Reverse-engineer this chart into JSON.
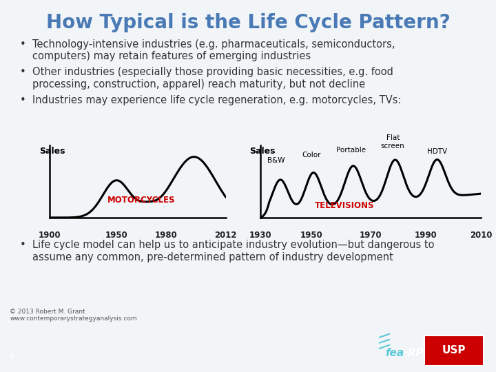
{
  "title": "How Typical is the Life Cycle Pattern?",
  "title_color": "#4a7ab5",
  "title_fontsize": 20,
  "background_color": "#f2f5f7",
  "footer_color": "#1a4040",
  "bullet_color": "#333333",
  "bullet_fontsize": 10.5,
  "bullets": [
    "Technology-intensive industries (e.g. pharmaceuticals, semiconductors,\ncomputers) may retain features of emerging industries",
    "Other industries (especially those providing basic necessities, e.g. food\nprocessing, construction, apparel) reach maturity, but not decline",
    "Industries may experience life cycle regeneration, e.g. motorcycles, TVs:"
  ],
  "bottom_bullet": "Life cycle model can help us to anticipate industry evolution—but dangerous to\nassume any common, pre-determined pattern of industry development",
  "motorcycles_label": "MOTORCYCLES",
  "televisions_label": "TELEVISIONS",
  "moto_x_labels": [
    "1900",
    "1950",
    "1980",
    "2012"
  ],
  "tv_x_labels": [
    "1930",
    "1950",
    "1970",
    "1990",
    "2010"
  ],
  "tv_annotations": [
    "B&W",
    "Color",
    "Portable",
    "Flat\nscreen",
    "HDTV"
  ],
  "chart_line_color": "#000000",
  "label_red_color": "#cc0000",
  "sales_label": "Sales",
  "copyright_text": "© 2013 Robert M. Grant\nwww.contemporarystrategyanalysis.com",
  "page_number": "6"
}
